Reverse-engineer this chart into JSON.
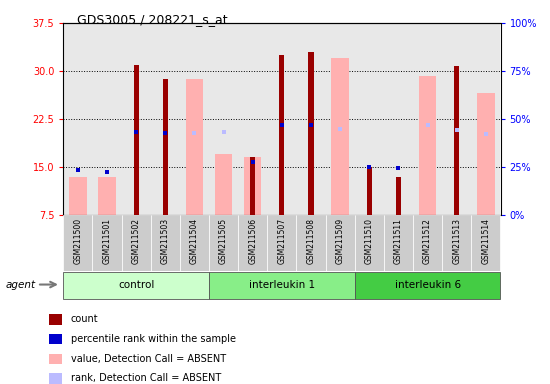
{
  "title": "GDS3005 / 208221_s_at",
  "samples": [
    "GSM211500",
    "GSM211501",
    "GSM211502",
    "GSM211503",
    "GSM211504",
    "GSM211505",
    "GSM211506",
    "GSM211507",
    "GSM211508",
    "GSM211509",
    "GSM211510",
    "GSM211511",
    "GSM211512",
    "GSM211513",
    "GSM211514"
  ],
  "groups": [
    {
      "label": "control",
      "start": 0,
      "end": 4,
      "color": "#CCFFCC"
    },
    {
      "label": "interleukin 1",
      "start": 5,
      "end": 9,
      "color": "#88EE88"
    },
    {
      "label": "interleukin 6",
      "start": 10,
      "end": 14,
      "color": "#44CC44"
    }
  ],
  "red_values": [
    null,
    null,
    31.0,
    28.8,
    null,
    null,
    16.5,
    32.5,
    33.0,
    null,
    15.0,
    13.5,
    null,
    30.8,
    null
  ],
  "pink_values": [
    13.5,
    13.5,
    null,
    null,
    28.8,
    17.0,
    16.5,
    null,
    null,
    32.0,
    null,
    null,
    29.2,
    null,
    26.5
  ],
  "blue_values": [
    14.5,
    14.2,
    20.5,
    20.3,
    null,
    null,
    15.8,
    21.5,
    21.5,
    null,
    15.0,
    14.8,
    null,
    null,
    null
  ],
  "light_blue_values": [
    null,
    null,
    null,
    null,
    20.3,
    20.5,
    null,
    null,
    null,
    21.0,
    null,
    null,
    21.5,
    20.8,
    20.2
  ],
  "ylim_left": [
    7.5,
    37.5
  ],
  "yticks_left": [
    7.5,
    15.0,
    22.5,
    30.0,
    37.5
  ],
  "yticks_right": [
    0,
    25,
    50,
    75,
    100
  ],
  "red_color": "#990000",
  "pink_color": "#FFB0B0",
  "blue_color": "#0000CC",
  "light_blue_color": "#BBBBFF",
  "legend_labels": [
    "count",
    "percentile rank within the sample",
    "value, Detection Call = ABSENT",
    "rank, Detection Call = ABSENT"
  ]
}
